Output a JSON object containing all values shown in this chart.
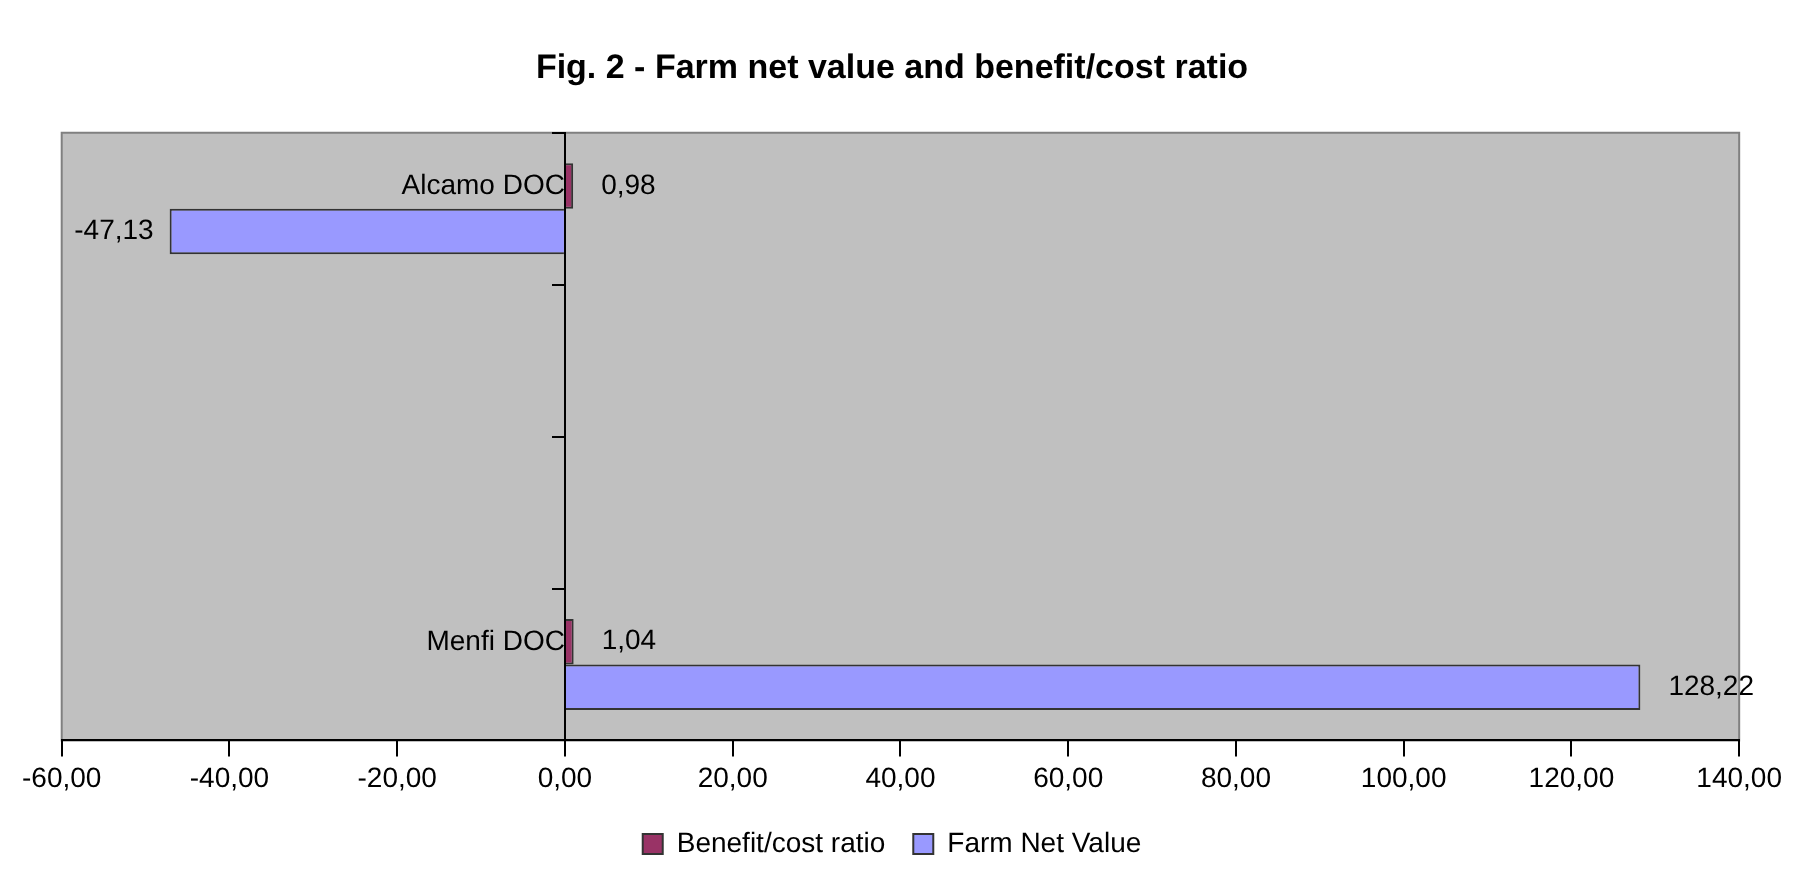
{
  "chart_data": {
    "type": "bar",
    "orientation": "horizontal",
    "title": "Fig. 2 - Farm net value and benefit/cost ratio",
    "categories": [
      "Alcamo DOC",
      null,
      null,
      "Menfi DOC"
    ],
    "series": [
      {
        "name": "Benefit/cost ratio",
        "color": "#993366",
        "values": [
          0.98,
          null,
          null,
          1.04
        ],
        "value_labels": [
          "0,98",
          null,
          null,
          "1,04"
        ]
      },
      {
        "name": "Farm Net Value",
        "color": "#9999ff",
        "values": [
          -47.13,
          null,
          null,
          128.22
        ],
        "value_labels": [
          "-47,13",
          null,
          null,
          "128,22"
        ]
      }
    ],
    "xlim": [
      -60,
      140
    ],
    "xticks": [
      {
        "value": -60,
        "label": "-60,00"
      },
      {
        "value": -40,
        "label": "-40,00"
      },
      {
        "value": -20,
        "label": "-20,00"
      },
      {
        "value": 0,
        "label": "0,00"
      },
      {
        "value": 20,
        "label": "20,00"
      },
      {
        "value": 40,
        "label": "40,00"
      },
      {
        "value": 60,
        "label": "60,00"
      },
      {
        "value": 80,
        "label": "80,00"
      },
      {
        "value": 100,
        "label": "100,00"
      },
      {
        "value": 120,
        "label": "120,00"
      },
      {
        "value": 140,
        "label": "140,00"
      }
    ],
    "grid": false,
    "legend": "bottom"
  }
}
